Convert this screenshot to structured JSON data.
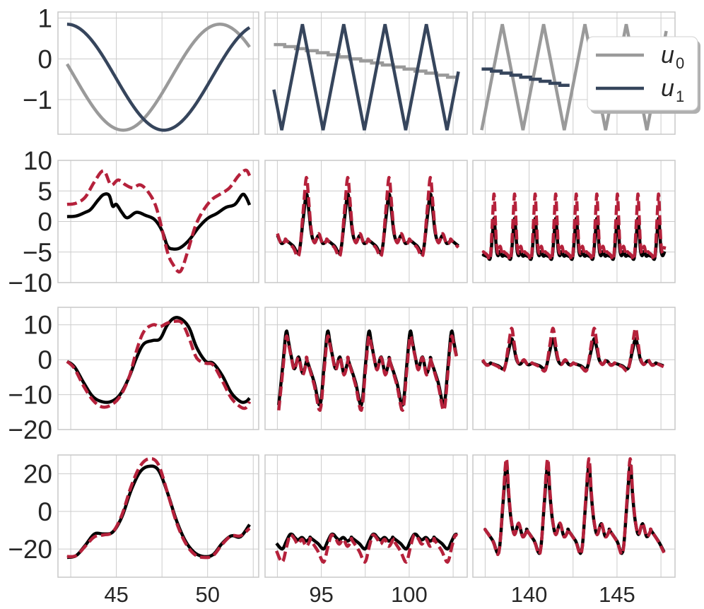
{
  "chart_data": {
    "type": "line",
    "layout": "4 rows x 3 columns of subplots; columns share x-axis, rows share y-axis",
    "grid": true,
    "legend": {
      "placement": "top-right",
      "entries": [
        {
          "label": "u",
          "subscript": "0",
          "color": "#9a9a9a"
        },
        {
          "label": "u",
          "subscript": "1",
          "color": "#36455c"
        }
      ]
    },
    "colors": {
      "u0": "#9a9a9a",
      "u1": "#36455c",
      "measured": "#000000",
      "predicted": "#b5213b",
      "grid": "#cccccc",
      "frame": "#c8c8c8"
    },
    "columns": [
      {
        "xlim": [
          41.8,
          52.8
        ],
        "xticks": [
          45,
          50
        ],
        "xtick_labels": [
          "45",
          "50"
        ]
      },
      {
        "xlim": [
          91.8,
          103.3
        ],
        "xticks": [
          95,
          100
        ],
        "xtick_labels": [
          "95",
          "100"
        ]
      },
      {
        "xlim": [
          136.8,
          148.3
        ],
        "xticks": [
          140,
          145
        ],
        "xtick_labels": [
          "140",
          "145"
        ]
      }
    ],
    "rows": [
      {
        "ylim": [
          -1.85,
          1.15
        ],
        "yticks": [
          1,
          0,
          -1
        ],
        "ytick_labels": [
          "1",
          "0",
          "−1"
        ]
      },
      {
        "ylim": [
          -10,
          10
        ],
        "yticks": [
          10,
          5,
          0,
          -5,
          -10
        ],
        "ytick_labels": [
          "10",
          "5",
          "0",
          "−5",
          "−10"
        ]
      },
      {
        "ylim": [
          -20,
          15
        ],
        "yticks": [
          10,
          0,
          -10,
          -20
        ],
        "ytick_labels": [
          "10",
          "0",
          "−10",
          "−20"
        ]
      },
      {
        "ylim": [
          -35,
          30
        ],
        "yticks": [
          20,
          0,
          -20
        ],
        "ytick_labels": [
          "20",
          "0",
          "−20"
        ]
      }
    ],
    "input_panels": {
      "col0": {
        "u0": {
          "kind": "sine",
          "x0": 42.3,
          "x1": 52.3,
          "offset": -0.45,
          "amp": 1.3,
          "period": 10.6,
          "phase_x": 42.3,
          "phase0": 1.32
        },
        "u1": {
          "kind": "sine",
          "x0": 42.3,
          "x1": 52.3,
          "offset": -0.45,
          "amp": 1.3,
          "period": 10.6,
          "phase_x": 42.3,
          "phase0": 0.0
        }
      },
      "col1": {
        "u0": {
          "kind": "staircase",
          "x0": 92.3,
          "x1": 102.8,
          "levels": [
            0.35,
            0.3,
            0.25,
            0.2,
            0.15,
            0.1,
            0.05,
            0.0,
            -0.05,
            -0.1,
            -0.15,
            -0.2,
            -0.25,
            -0.3,
            -0.35,
            -0.4,
            -0.45
          ]
        },
        "u1": {
          "kind": "triangle",
          "x0": 92.3,
          "x1": 102.8,
          "period": 2.35,
          "x_first_min": 92.75,
          "min": -1.75,
          "max": 0.85
        }
      },
      "col2": {
        "u0": {
          "kind": "triangle",
          "x0": 137.3,
          "x1": 147.8,
          "period": 2.35,
          "x_first_min": 137.3,
          "min": -1.75,
          "max": 0.85
        },
        "u1": {
          "kind": "staircase",
          "x0": 137.3,
          "x1": 142.3,
          "levels": [
            -0.25,
            -0.3,
            -0.35,
            -0.4,
            -0.45,
            -0.5,
            -0.55,
            -0.6,
            -0.65
          ]
        }
      }
    },
    "output_series": [
      {
        "row": 1,
        "col": 0,
        "measured": [
          [
            42.3,
            0.8
          ],
          [
            42.8,
            0.9
          ],
          [
            43.3,
            1.5
          ],
          [
            43.6,
            2.0
          ],
          [
            44.0,
            3.5
          ],
          [
            44.3,
            4.4
          ],
          [
            44.6,
            4.3
          ],
          [
            44.8,
            2.5
          ],
          [
            45.0,
            2.8
          ],
          [
            45.3,
            1.5
          ],
          [
            45.6,
            0.6
          ],
          [
            46.1,
            1.5
          ],
          [
            46.6,
            1.0
          ],
          [
            47.1,
            0.3
          ],
          [
            47.5,
            -1.5
          ],
          [
            47.8,
            -4.0
          ],
          [
            48.1,
            -4.5
          ],
          [
            48.5,
            -4.3
          ],
          [
            49.0,
            -3.0
          ],
          [
            49.5,
            -1.0
          ],
          [
            50.0,
            0.5
          ],
          [
            50.5,
            1.3
          ],
          [
            51.0,
            2.3
          ],
          [
            51.5,
            2.8
          ],
          [
            51.9,
            4.4
          ],
          [
            52.1,
            4.0
          ],
          [
            52.3,
            2.7
          ]
        ],
        "predicted": [
          [
            42.3,
            2.8
          ],
          [
            42.8,
            3.0
          ],
          [
            43.3,
            4.0
          ],
          [
            43.8,
            6.5
          ],
          [
            44.3,
            8.3
          ],
          [
            44.7,
            6.0
          ],
          [
            45.1,
            6.8
          ],
          [
            45.5,
            6.0
          ],
          [
            45.9,
            5.5
          ],
          [
            46.3,
            6.0
          ],
          [
            46.7,
            5.0
          ],
          [
            47.1,
            3.0
          ],
          [
            47.4,
            0.0
          ],
          [
            47.8,
            -5.0
          ],
          [
            48.1,
            -7.0
          ],
          [
            48.5,
            -8.2
          ],
          [
            48.9,
            -5.0
          ],
          [
            49.3,
            -1.0
          ],
          [
            49.7,
            1.5
          ],
          [
            50.2,
            3.5
          ],
          [
            50.7,
            4.5
          ],
          [
            51.2,
            5.5
          ],
          [
            51.7,
            7.5
          ],
          [
            52.1,
            8.4
          ],
          [
            52.3,
            7.5
          ]
        ]
      },
      {
        "row": 2,
        "col": 0,
        "measured": [
          [
            42.3,
            -0.5
          ],
          [
            42.7,
            -2.0
          ],
          [
            43.2,
            -6.5
          ],
          [
            43.7,
            -10.5
          ],
          [
            44.2,
            -12.0
          ],
          [
            44.7,
            -12.0
          ],
          [
            45.2,
            -10.0
          ],
          [
            45.7,
            -5.0
          ],
          [
            46.1,
            0.5
          ],
          [
            46.5,
            4.5
          ],
          [
            47.0,
            5.5
          ],
          [
            47.4,
            6.0
          ],
          [
            47.8,
            10.0
          ],
          [
            48.2,
            12.0
          ],
          [
            48.6,
            11.5
          ],
          [
            49.0,
            9.0
          ],
          [
            49.4,
            3.5
          ],
          [
            49.9,
            -0.5
          ],
          [
            50.3,
            -1.0
          ],
          [
            50.8,
            -4.5
          ],
          [
            51.3,
            -9.5
          ],
          [
            51.8,
            -12.0
          ],
          [
            52.1,
            -12.0
          ],
          [
            52.3,
            -11.0
          ]
        ],
        "predicted": [
          [
            42.3,
            -0.5
          ],
          [
            42.7,
            -2.5
          ],
          [
            43.2,
            -7.5
          ],
          [
            43.7,
            -11.5
          ],
          [
            44.2,
            -13.5
          ],
          [
            44.7,
            -13.0
          ],
          [
            45.2,
            -10.5
          ],
          [
            45.7,
            -5.0
          ],
          [
            46.1,
            2.5
          ],
          [
            46.5,
            8.0
          ],
          [
            47.0,
            10.0
          ],
          [
            47.4,
            9.5
          ],
          [
            47.8,
            10.5
          ],
          [
            48.2,
            11.0
          ],
          [
            48.6,
            10.5
          ],
          [
            49.0,
            6.0
          ],
          [
            49.4,
            0.5
          ],
          [
            49.9,
            -1.0
          ],
          [
            50.3,
            -1.5
          ],
          [
            50.8,
            -6.0
          ],
          [
            51.3,
            -11.0
          ],
          [
            51.8,
            -13.5
          ],
          [
            52.1,
            -13.8
          ],
          [
            52.3,
            -12.0
          ]
        ]
      },
      {
        "row": 3,
        "col": 0,
        "measured": [
          [
            42.3,
            -24.5
          ],
          [
            42.8,
            -23.5
          ],
          [
            43.3,
            -18.0
          ],
          [
            43.8,
            -12.0
          ],
          [
            44.3,
            -12.0
          ],
          [
            44.8,
            -11.0
          ],
          [
            45.3,
            -3.0
          ],
          [
            45.8,
            11.0
          ],
          [
            46.3,
            21.0
          ],
          [
            46.8,
            24.0
          ],
          [
            47.3,
            22.0
          ],
          [
            47.8,
            10.0
          ],
          [
            48.3,
            -5.0
          ],
          [
            48.8,
            -16.0
          ],
          [
            49.3,
            -22.0
          ],
          [
            49.8,
            -24.0
          ],
          [
            50.3,
            -23.0
          ],
          [
            50.8,
            -17.0
          ],
          [
            51.3,
            -13.0
          ],
          [
            51.8,
            -13.5
          ],
          [
            52.3,
            -7.0
          ]
        ],
        "predicted": [
          [
            42.3,
            -24.0
          ],
          [
            42.8,
            -23.5
          ],
          [
            43.3,
            -18.5
          ],
          [
            43.8,
            -13.5
          ],
          [
            44.3,
            -12.5
          ],
          [
            44.8,
            -11.0
          ],
          [
            45.3,
            -2.0
          ],
          [
            45.8,
            13.0
          ],
          [
            46.3,
            24.0
          ],
          [
            46.8,
            28.0
          ],
          [
            47.3,
            25.0
          ],
          [
            47.8,
            10.0
          ],
          [
            48.3,
            -6.0
          ],
          [
            48.8,
            -17.0
          ],
          [
            49.3,
            -23.0
          ],
          [
            49.8,
            -24.5
          ],
          [
            50.3,
            -23.5
          ],
          [
            50.8,
            -17.5
          ],
          [
            51.3,
            -13.0
          ],
          [
            51.8,
            -13.0
          ],
          [
            52.3,
            -9.0
          ]
        ]
      }
    ],
    "periodic_outputs": [
      {
        "row": 1,
        "col": 1,
        "x0": 92.3,
        "x1": 102.8,
        "period": 2.35,
        "peak_x": 94.15,
        "base_meas": -3.0,
        "base_pred": -3.0,
        "peak_meas": 4.5,
        "peak_pred": 7.2,
        "trough_meas": -5.0,
        "trough_pred": -5.5
      },
      {
        "row": 1,
        "col": 2,
        "x0": 137.3,
        "x1": 147.8,
        "period": 1.17,
        "peak_x": 138.0,
        "base_meas": -5.5,
        "base_pred": -5.0,
        "peak_meas": 0.5,
        "peak_pred": 4.5,
        "trough_meas": -6.0,
        "trough_pred": -6.0
      },
      {
        "row": 2,
        "col": 1,
        "x0": 92.3,
        "x1": 102.8,
        "period": 2.35,
        "peak_x": 93.0,
        "base_meas": 0.0,
        "base_pred": 0.0,
        "peak_meas": 8.0,
        "peak_pred": 6.5,
        "trough_meas": -13.0,
        "trough_pred": -14.5
      },
      {
        "row": 2,
        "col": 2,
        "x0": 137.3,
        "x1": 147.8,
        "period": 2.35,
        "peak_x": 139.0,
        "base_meas": -1.0,
        "base_pred": -1.0,
        "peak_meas": 6.0,
        "peak_pred": 9.0,
        "trough_meas": -2.5,
        "trough_pred": -3.0
      },
      {
        "row": 3,
        "col": 1,
        "x0": 92.3,
        "x1": 102.8,
        "period": 2.35,
        "peak_x": 93.2,
        "base_meas": -14.0,
        "base_pred": -15.0,
        "peak_meas": -12.5,
        "peak_pred": -13.0,
        "trough_meas": -20.0,
        "trough_pred": -27.0
      },
      {
        "row": 3,
        "col": 2,
        "x0": 137.3,
        "x1": 147.8,
        "period": 2.35,
        "peak_x": 138.7,
        "base_meas": -10.0,
        "base_pred": -10.0,
        "peak_meas": 24.5,
        "peak_pred": 28.0,
        "trough_meas": -21.5,
        "trough_pred": -22.0
      }
    ]
  }
}
